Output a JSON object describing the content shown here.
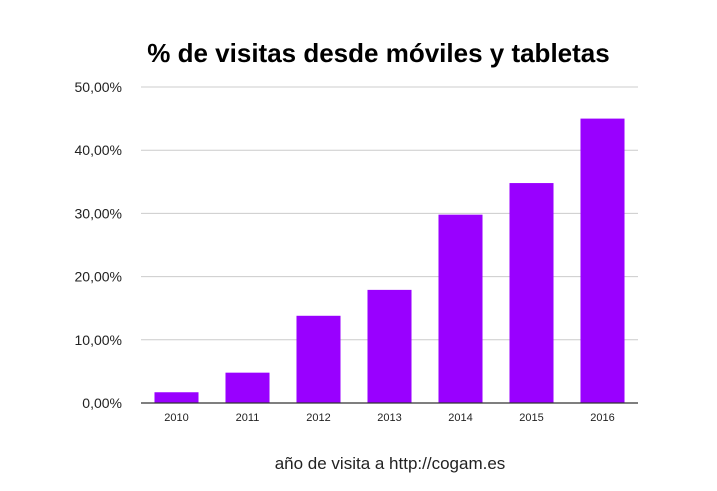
{
  "chart_data": {
    "type": "bar",
    "title": "% de visitas desde móviles y tabletas",
    "xlabel": "año de visita a http://cogam.es",
    "ylabel": "",
    "categories": [
      "2010",
      "2011",
      "2012",
      "2013",
      "2014",
      "2015",
      "2016"
    ],
    "values": [
      1.7,
      4.8,
      13.8,
      17.9,
      29.8,
      34.8,
      45.0
    ],
    "ylim": [
      0,
      50
    ],
    "yticks": [
      "0,00%",
      "10,00%",
      "20,00%",
      "30,00%",
      "40,00%",
      "50,00%"
    ],
    "grid": true,
    "legend": "none",
    "bar_color": "#9900ff"
  }
}
